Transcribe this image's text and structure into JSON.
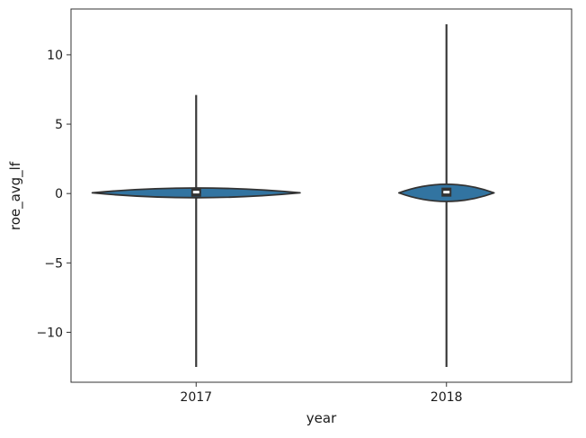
{
  "chart_data": {
    "type": "violin",
    "title": "",
    "xlabel": "year",
    "ylabel": "roe_avg_lf",
    "categories": [
      "2017",
      "2018"
    ],
    "yticks": [
      10,
      5,
      0,
      -5,
      -10
    ],
    "ylim": [
      -13.6,
      13.3
    ],
    "grid": false,
    "legend": false,
    "background": "#ffffff",
    "colors": {
      "violin_fill": "#3274a1",
      "violin_edge": "#333333",
      "whisker_line": "#3a3a3a",
      "median_box": "#333333",
      "median_dash": "#ffffff",
      "spine": "#333333",
      "text": "#1a1a1a"
    },
    "series": [
      {
        "name": "2017",
        "whisker_min": -12.5,
        "whisker_max": 7.1,
        "median": 0.1,
        "body_center": 0.05,
        "body_half_height": 0.35,
        "width_frac": 0.83
      },
      {
        "name": "2018",
        "whisker_min": -12.5,
        "whisker_max": 12.2,
        "median": 0.1,
        "body_center": 0.05,
        "body_half_height": 0.62,
        "width_frac": 0.38
      }
    ]
  }
}
